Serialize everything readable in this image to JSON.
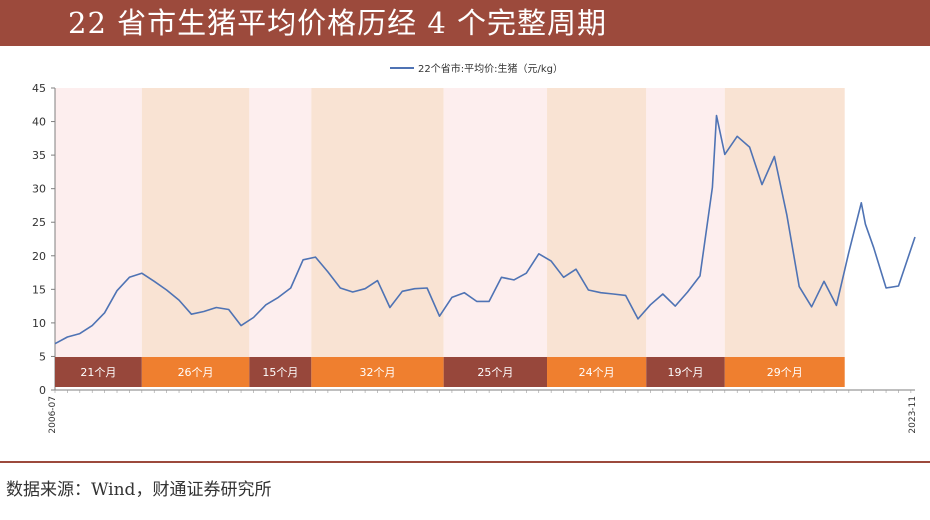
{
  "page": {
    "title": "22 省市生猪平均价格历经 4 个完整周期",
    "source": "数据来源：Wind，财通证券研究所"
  },
  "colors": {
    "brand": "#9c4a3c",
    "line": "#4f73b4",
    "band_pink": "#fdeeee",
    "band_peach": "#f9e3d3",
    "box_dark": "#97473b",
    "box_orange": "#ef7f2f"
  },
  "chart_data": {
    "type": "line",
    "legend": {
      "label": "22个省市:平均价:生猪（元/kg）",
      "position": "top-center"
    },
    "y_axis": {
      "min": 0,
      "max": 45,
      "step": 5,
      "ticks": [
        "0",
        "5",
        "10",
        "15",
        "20",
        "25",
        "30",
        "35",
        "40",
        "45"
      ]
    },
    "x_axis": {
      "min": "2006-07",
      "max": "2023-11",
      "tick_labels": [
        "2006-07",
        "2023-11"
      ]
    },
    "series": [
      {
        "name": "22个省市:平均价:生猪（元/kg）",
        "points": [
          [
            "2006-07",
            6.9
          ],
          [
            "2006-10",
            7.9
          ],
          [
            "2007-01",
            8.4
          ],
          [
            "2007-04",
            9.6
          ],
          [
            "2007-07",
            11.5
          ],
          [
            "2007-10",
            14.8
          ],
          [
            "2008-01",
            16.8
          ],
          [
            "2008-04",
            17.4
          ],
          [
            "2008-07",
            16.2
          ],
          [
            "2008-10",
            14.9
          ],
          [
            "2009-01",
            13.4
          ],
          [
            "2009-04",
            11.3
          ],
          [
            "2009-07",
            11.7
          ],
          [
            "2009-10",
            12.3
          ],
          [
            "2010-01",
            12.0
          ],
          [
            "2010-04",
            9.6
          ],
          [
            "2010-07",
            10.8
          ],
          [
            "2010-10",
            12.7
          ],
          [
            "2011-01",
            13.8
          ],
          [
            "2011-04",
            15.2
          ],
          [
            "2011-07",
            19.4
          ],
          [
            "2011-10",
            19.8
          ],
          [
            "2012-01",
            17.6
          ],
          [
            "2012-04",
            15.2
          ],
          [
            "2012-07",
            14.6
          ],
          [
            "2012-10",
            15.1
          ],
          [
            "2013-01",
            16.3
          ],
          [
            "2013-04",
            12.3
          ],
          [
            "2013-07",
            14.7
          ],
          [
            "2013-10",
            15.1
          ],
          [
            "2014-01",
            15.2
          ],
          [
            "2014-04",
            11.0
          ],
          [
            "2014-07",
            13.8
          ],
          [
            "2014-10",
            14.5
          ],
          [
            "2015-01",
            13.2
          ],
          [
            "2015-04",
            13.2
          ],
          [
            "2015-07",
            16.8
          ],
          [
            "2015-10",
            16.4
          ],
          [
            "2016-01",
            17.4
          ],
          [
            "2016-04",
            20.3
          ],
          [
            "2016-07",
            19.2
          ],
          [
            "2016-10",
            16.8
          ],
          [
            "2017-01",
            18.0
          ],
          [
            "2017-04",
            14.9
          ],
          [
            "2017-07",
            14.5
          ],
          [
            "2017-10",
            14.3
          ],
          [
            "2018-01",
            14.1
          ],
          [
            "2018-04",
            10.6
          ],
          [
            "2018-07",
            12.7
          ],
          [
            "2018-10",
            14.3
          ],
          [
            "2019-01",
            12.5
          ],
          [
            "2019-04",
            14.6
          ],
          [
            "2019-07",
            17.0
          ],
          [
            "2019-10",
            30.2
          ],
          [
            "2019-11",
            40.9
          ],
          [
            "2020-01",
            35.1
          ],
          [
            "2020-04",
            37.8
          ],
          [
            "2020-07",
            36.2
          ],
          [
            "2020-10",
            30.6
          ],
          [
            "2021-01",
            34.8
          ],
          [
            "2021-04",
            26.1
          ],
          [
            "2021-07",
            15.4
          ],
          [
            "2021-10",
            12.4
          ],
          [
            "2022-01",
            16.2
          ],
          [
            "2022-04",
            12.6
          ],
          [
            "2022-07",
            20.5
          ],
          [
            "2022-10",
            27.9
          ],
          [
            "2022-11",
            24.7
          ],
          [
            "2023-01",
            21.2
          ],
          [
            "2023-04",
            15.2
          ],
          [
            "2023-07",
            15.5
          ],
          [
            "2023-11",
            22.8
          ]
        ]
      }
    ],
    "cycles": [
      {
        "label": "21个月",
        "start": "2006-07",
        "end": "2008-04",
        "tone": "dark"
      },
      {
        "label": "26个月",
        "start": "2008-04",
        "end": "2010-06",
        "tone": "orange"
      },
      {
        "label": "15个月",
        "start": "2010-06",
        "end": "2011-09",
        "tone": "dark"
      },
      {
        "label": "32个月",
        "start": "2011-09",
        "end": "2014-05",
        "tone": "orange"
      },
      {
        "label": "25个月",
        "start": "2014-05",
        "end": "2016-06",
        "tone": "dark"
      },
      {
        "label": "24个月",
        "start": "2016-06",
        "end": "2018-06",
        "tone": "orange"
      },
      {
        "label": "19个月",
        "start": "2018-06",
        "end": "2020-01",
        "tone": "dark"
      },
      {
        "label": "29个月",
        "start": "2020-01",
        "end": "2022-06",
        "tone": "orange"
      }
    ]
  }
}
